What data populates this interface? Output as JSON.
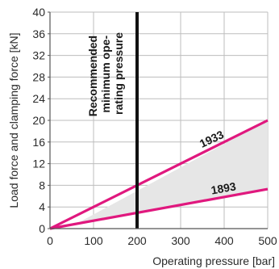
{
  "chart_data": {
    "type": "line",
    "xlabel": "Operating pressure [bar]",
    "ylabel": "Load force and clamping force [kN]",
    "xlim": [
      0,
      500
    ],
    "ylim": [
      0,
      40
    ],
    "xticks": [
      0,
      100,
      200,
      300,
      400,
      500
    ],
    "yticks": [
      0,
      4,
      8,
      12,
      16,
      20,
      24,
      28,
      32,
      36,
      40
    ],
    "grid": true,
    "series": [
      {
        "name": "1933",
        "color": "#e0187e",
        "x": [
          0,
          500
        ],
        "y": [
          0,
          20
        ]
      },
      {
        "name": "1893",
        "color": "#e0187e",
        "x": [
          0,
          500
        ],
        "y": [
          0,
          7.3
        ]
      }
    ],
    "shaded_region": {
      "between": [
        "1933",
        "1893"
      ],
      "x_from": 60,
      "x_to": 500,
      "color": "#e6e6e6"
    },
    "vertical_line": {
      "x": 200,
      "color": "#111111"
    },
    "annotation": {
      "lines": [
        "Recommended",
        "minimum ope-",
        "rating pressure"
      ]
    }
  }
}
